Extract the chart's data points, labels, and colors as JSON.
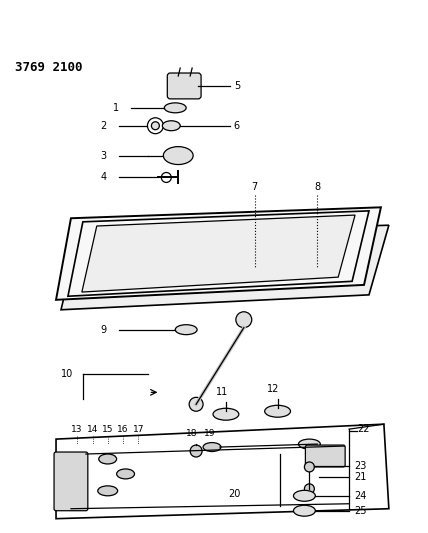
{
  "title": "3769 2100",
  "bg_color": "#ffffff",
  "line_color": "#000000",
  "title_fontsize": 9,
  "title_fontweight": "bold"
}
